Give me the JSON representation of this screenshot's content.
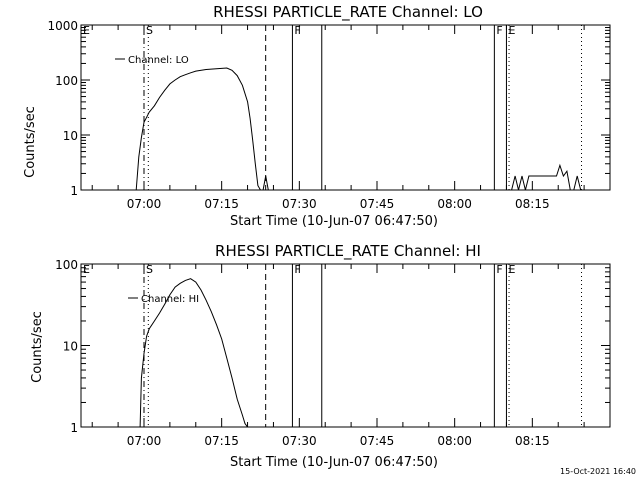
{
  "chart_data": [
    {
      "type": "line",
      "title": "RHESSI PARTICLE_RATE Channel: LO",
      "xlabel": "Start Time (10-Jun-07 06:47:50)",
      "ylabel": "Counts/sec",
      "yscale": "log",
      "ylim": [
        1,
        1000
      ],
      "xlim": [
        "06:47:50",
        "08:30:00"
      ],
      "y_ticks": [
        "1",
        "10",
        "100",
        "1000"
      ],
      "x_ticks": [
        "07:00",
        "07:15",
        "07:30",
        "07:45",
        "08:00",
        "08:15"
      ],
      "legend": {
        "position": "top-left",
        "entries": [
          "Channel: LO"
        ]
      },
      "series": [
        {
          "name": "Channel: LO",
          "x": [
            "06:58:30",
            "06:59:00",
            "06:59:30",
            "07:00:00",
            "07:00:30",
            "07:01:00",
            "07:02:00",
            "07:03:00",
            "07:04:00",
            "07:05:00",
            "07:06:00",
            "07:07:00",
            "07:08:00",
            "07:09:00",
            "07:10:00",
            "07:12:00",
            "07:14:00",
            "07:16:00",
            "07:17:00",
            "07:18:00",
            "07:19:00",
            "07:20:00",
            "07:20:30",
            "07:21:00",
            "07:21:30",
            "07:22:00",
            "07:22:30",
            "07:23:00",
            "07:23:30",
            "07:24:00",
            "07:24:30"
          ],
          "y": [
            1,
            4,
            9,
            17,
            21,
            26,
            34,
            48,
            65,
            85,
            100,
            115,
            125,
            135,
            145,
            155,
            160,
            165,
            150,
            120,
            80,
            40,
            20,
            8,
            3,
            1.2,
            1,
            1,
            1.8,
            1,
            1
          ]
        }
      ],
      "markers": [
        {
          "label": "E",
          "x": "06:47:50",
          "style": "solid"
        },
        {
          "label": "S",
          "x": "07:00:00",
          "style": "dashdot"
        },
        {
          "label": "",
          "x": "07:00:50",
          "style": "dotted"
        },
        {
          "label": "",
          "x": "07:23:30",
          "style": "dashed"
        },
        {
          "label": "F",
          "x": "07:28:40",
          "style": "solid"
        },
        {
          "label": "",
          "x": "07:34:20",
          "style": "solid"
        },
        {
          "label": "F",
          "x": "08:07:40",
          "style": "solid"
        },
        {
          "label": "E",
          "x": "08:10:00",
          "style": "solid"
        },
        {
          "label": "",
          "x": "08:10:30",
          "style": "dotted"
        },
        {
          "label": "",
          "x": "08:24:30",
          "style": "dotted"
        }
      ],
      "extra_series": [
        {
          "x": [
            "08:11:00",
            "08:11:40",
            "08:12:20",
            "08:13:00",
            "08:13:40",
            "08:14:20",
            "08:15:00",
            "08:15:40",
            "08:16:20",
            "08:17:00",
            "08:17:40",
            "08:18:20",
            "08:19:00",
            "08:19:40",
            "08:20:20",
            "08:21:00",
            "08:21:40",
            "08:22:20",
            "08:23:00",
            "08:23:40",
            "08:24:20"
          ],
          "y": [
            1,
            1.8,
            1,
            1.8,
            1,
            1.8,
            1.8,
            1.8,
            1.8,
            1.8,
            1.8,
            1.8,
            1.8,
            1.8,
            2.8,
            1.8,
            2.2,
            1,
            1,
            1.8,
            1
          ]
        }
      ]
    },
    {
      "type": "line",
      "title": "RHESSI PARTICLE_RATE Channel: HI",
      "xlabel": "Start Time (10-Jun-07 06:47:50)",
      "ylabel": "Counts/sec",
      "yscale": "log",
      "ylim": [
        1,
        100
      ],
      "xlim": [
        "06:47:50",
        "08:30:00"
      ],
      "y_ticks": [
        "1",
        "10",
        "100"
      ],
      "x_ticks": [
        "07:00",
        "07:15",
        "07:30",
        "07:45",
        "08:00",
        "08:15"
      ],
      "legend": {
        "position": "top-left",
        "entries": [
          "Channel: HI"
        ]
      },
      "series": [
        {
          "name": "Channel: HI",
          "x": [
            "06:59:15",
            "06:59:30",
            "07:00:00",
            "07:00:30",
            "07:01:00",
            "07:02:00",
            "07:03:00",
            "07:04:00",
            "07:05:00",
            "07:06:00",
            "07:07:00",
            "07:08:00",
            "07:09:00",
            "07:10:00",
            "07:11:00",
            "07:12:00",
            "07:13:00",
            "07:14:00",
            "07:15:00",
            "07:16:00",
            "07:17:00",
            "07:18:00",
            "07:19:00",
            "07:19:30",
            "07:20:00"
          ],
          "y": [
            1,
            4,
            8,
            13,
            16,
            20,
            25,
            32,
            42,
            52,
            58,
            63,
            66,
            60,
            48,
            36,
            26,
            18,
            12,
            7,
            4,
            2.2,
            1.4,
            1.1,
            1
          ]
        }
      ],
      "markers": [
        {
          "label": "E",
          "x": "06:47:50",
          "style": "solid"
        },
        {
          "label": "S",
          "x": "07:00:00",
          "style": "dashdot"
        },
        {
          "label": "",
          "x": "07:00:50",
          "style": "dotted"
        },
        {
          "label": "",
          "x": "07:23:30",
          "style": "dashed"
        },
        {
          "label": "F",
          "x": "07:28:40",
          "style": "solid"
        },
        {
          "label": "",
          "x": "07:34:20",
          "style": "solid"
        },
        {
          "label": "F",
          "x": "08:07:40",
          "style": "solid"
        },
        {
          "label": "E",
          "x": "08:10:00",
          "style": "solid"
        },
        {
          "label": "",
          "x": "08:10:30",
          "style": "dotted"
        },
        {
          "label": "",
          "x": "08:24:30",
          "style": "dotted"
        }
      ]
    }
  ],
  "footer": {
    "timestamp": "15-Oct-2021 16:40"
  }
}
